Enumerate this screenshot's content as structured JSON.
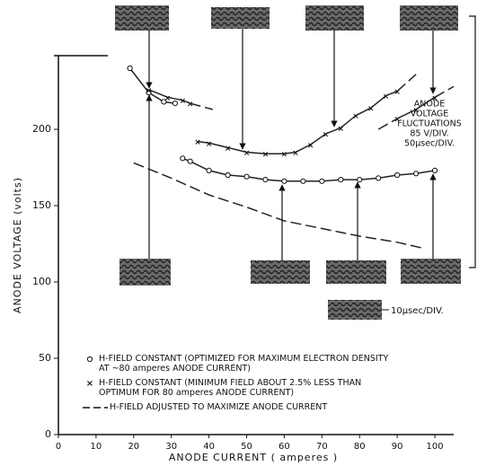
{
  "chart_data": {
    "type": "line",
    "x_label": "ANODE CURRENT ( amperes )",
    "y_label": "ANODE VOLTAGE (volts)",
    "xlim": [
      0,
      105
    ],
    "ylim": [
      0,
      248
    ],
    "xticks": [
      0,
      10,
      20,
      30,
      40,
      50,
      60,
      70,
      80,
      90,
      100
    ],
    "yticks": [
      0,
      50,
      100,
      150,
      200
    ],
    "series": [
      {
        "name": "H-FIELD CONSTANT (OPTIMIZED FOR MAXIMUM ELECTRON DENSITY AT ~80 amperes ANODE CURRENT)",
        "marker": "circle",
        "style": "solid",
        "color": "#222",
        "x": [
          33,
          35,
          40,
          45,
          50,
          55,
          60,
          65,
          70,
          75,
          80,
          85,
          90,
          95,
          100
        ],
        "values": [
          181,
          179,
          173,
          170,
          169,
          167,
          166,
          166,
          166,
          167,
          167,
          168,
          170,
          171,
          173
        ]
      },
      {
        "marker": "circle",
        "style": "solid",
        "color": "#222",
        "x": [
          19,
          24,
          28,
          31
        ],
        "values": [
          240,
          224,
          218,
          217
        ]
      },
      {
        "name": "H-FIELD CONSTANT (MINIMUM FIELD ABOUT 2.5% LESS THAN OPTIMUM FOR 80 amperes ANODE CURRENT)",
        "marker": "x",
        "style": "solid",
        "color": "#222",
        "x": [
          37,
          40,
          45,
          50,
          55,
          60,
          63,
          67,
          71,
          75,
          79,
          83,
          87,
          90
        ],
        "values": [
          192,
          191,
          188,
          185,
          184,
          184,
          185,
          190,
          197,
          201,
          209,
          214,
          222,
          225
        ]
      },
      {
        "marker": "x",
        "style": "solid",
        "color": "#222",
        "x": [
          24,
          29,
          33,
          35
        ],
        "values": [
          226,
          221,
          219,
          217
        ]
      },
      {
        "marker": "x",
        "style": "solid",
        "color": "#222",
        "x": [
          90,
          95,
          100
        ],
        "values": [
          207,
          213,
          221
        ]
      },
      {
        "name": "H-FIELD ADJUSTED TO MAXIMIZE ANODE CURRENT",
        "marker": "none",
        "style": "dashed",
        "color": "#222",
        "x": [
          20,
          30,
          40,
          50,
          60,
          70,
          80,
          90,
          97
        ],
        "values": [
          178,
          168,
          157,
          149,
          140,
          135,
          130,
          126,
          122
        ]
      },
      {
        "marker": "none",
        "style": "dashed",
        "color": "#222",
        "x": [
          35,
          41
        ],
        "values": [
          217,
          213
        ]
      },
      {
        "marker": "none",
        "style": "dashed",
        "color": "#222",
        "x": [
          90,
          95
        ],
        "values": [
          225,
          236
        ]
      },
      {
        "marker": "none",
        "style": "dashed",
        "color": "#222",
        "x": [
          85,
          90
        ],
        "values": [
          200,
          207
        ]
      },
      {
        "marker": "none",
        "style": "dashed",
        "color": "#222",
        "x": [
          100,
          105
        ],
        "values": [
          221,
          228
        ]
      }
    ],
    "annotation_lines": [
      "ANODE",
      "VOLTAGE",
      "FLUCTUATIONS",
      "85 V/DIV.",
      "50μsec/DIV."
    ],
    "scale_note": "10μsec/DIV."
  }
}
